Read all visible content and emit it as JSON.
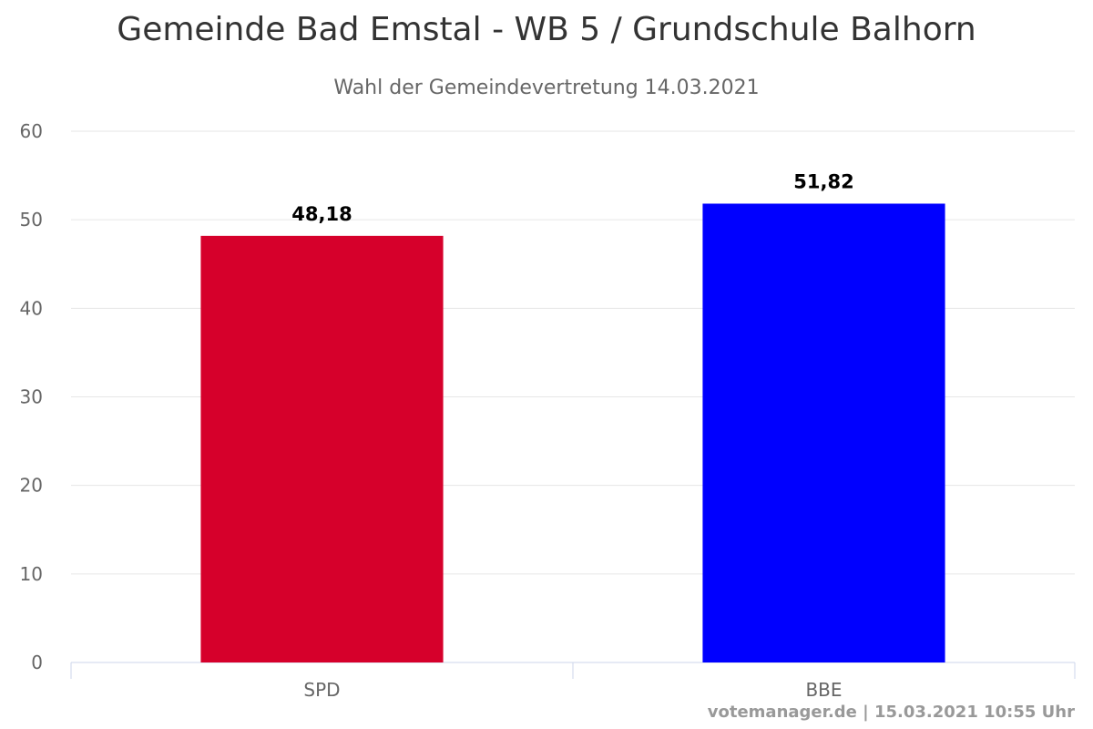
{
  "chart_data": {
    "type": "bar",
    "title": "Gemeinde Bad Emstal - WB 5 / Grundschule Balhorn",
    "subtitle": "Wahl der Gemeindevertretung 14.03.2021",
    "categories": [
      "SPD",
      "BBE"
    ],
    "values": [
      48.18,
      51.82
    ],
    "data_labels": [
      "48,18",
      "51,82"
    ],
    "colors": [
      "#d6002b",
      "#0000ff"
    ],
    "ylim": [
      0,
      60
    ],
    "yticks": [
      0,
      10,
      20,
      30,
      40,
      50,
      60
    ],
    "grid": true,
    "legend": "none"
  },
  "credit": "votemanager.de | 15.03.2021 10:55 Uhr"
}
